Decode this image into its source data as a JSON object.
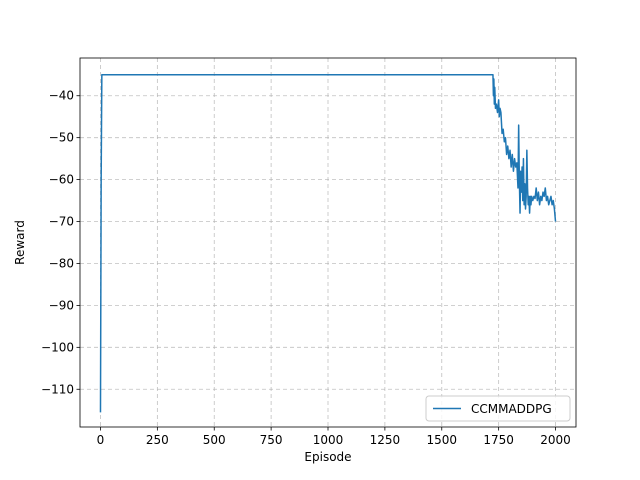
{
  "chart_data": {
    "type": "line",
    "xlabel": "Episode",
    "ylabel": "Reward",
    "xlim": [
      -90,
      2090
    ],
    "ylim": [
      -119,
      -31
    ],
    "xticks": [
      0,
      250,
      500,
      750,
      1000,
      1250,
      1500,
      1750,
      2000
    ],
    "yticks": [
      -110,
      -100,
      -90,
      -80,
      -70,
      -60,
      -50,
      -40
    ],
    "grid": true,
    "legend_position": "lower right",
    "series": [
      {
        "name": "CCMMADDPG",
        "color": "#1f77b4",
        "points": [
          [
            0,
            -115.5
          ],
          [
            3,
            -60
          ],
          [
            6,
            -35
          ],
          [
            10,
            -35
          ],
          [
            500,
            -35
          ],
          [
            1000,
            -35
          ],
          [
            1500,
            -35
          ],
          [
            1725,
            -35
          ],
          [
            1727,
            -40
          ],
          [
            1729,
            -36
          ],
          [
            1731,
            -42
          ],
          [
            1733,
            -38
          ],
          [
            1736,
            -43
          ],
          [
            1740,
            -42
          ],
          [
            1745,
            -44
          ],
          [
            1750,
            -41
          ],
          [
            1753,
            -45
          ],
          [
            1756,
            -43
          ],
          [
            1760,
            -44
          ],
          [
            1765,
            -49
          ],
          [
            1770,
            -48
          ],
          [
            1775,
            -51
          ],
          [
            1780,
            -50
          ],
          [
            1785,
            -54
          ],
          [
            1790,
            -52
          ],
          [
            1795,
            -55
          ],
          [
            1800,
            -53
          ],
          [
            1805,
            -57
          ],
          [
            1810,
            -54
          ],
          [
            1815,
            -58
          ],
          [
            1820,
            -55
          ],
          [
            1825,
            -57
          ],
          [
            1830,
            -56
          ],
          [
            1835,
            -62
          ],
          [
            1838,
            -47
          ],
          [
            1841,
            -60
          ],
          [
            1844,
            -68
          ],
          [
            1847,
            -58
          ],
          [
            1850,
            -63
          ],
          [
            1853,
            -57
          ],
          [
            1856,
            -65
          ],
          [
            1859,
            -55
          ],
          [
            1862,
            -66
          ],
          [
            1865,
            -61
          ],
          [
            1868,
            -67
          ],
          [
            1871,
            -64
          ],
          [
            1874,
            -53
          ],
          [
            1877,
            -62
          ],
          [
            1880,
            -66
          ],
          [
            1883,
            -64
          ],
          [
            1886,
            -68
          ],
          [
            1889,
            -64
          ],
          [
            1892,
            -66
          ],
          [
            1895,
            -64
          ],
          [
            1900,
            -65
          ],
          [
            1905,
            -64
          ],
          [
            1910,
            -64.5
          ],
          [
            1915,
            -62
          ],
          [
            1920,
            -65
          ],
          [
            1925,
            -63
          ],
          [
            1930,
            -66
          ],
          [
            1935,
            -64
          ],
          [
            1940,
            -65
          ],
          [
            1945,
            -63
          ],
          [
            1950,
            -64
          ],
          [
            1955,
            -62
          ],
          [
            1960,
            -65
          ],
          [
            1965,
            -64
          ],
          [
            1970,
            -66
          ],
          [
            1975,
            -65
          ],
          [
            1980,
            -64
          ],
          [
            1985,
            -66
          ],
          [
            1990,
            -65
          ],
          [
            1995,
            -67
          ],
          [
            2000,
            -70
          ]
        ]
      }
    ]
  }
}
